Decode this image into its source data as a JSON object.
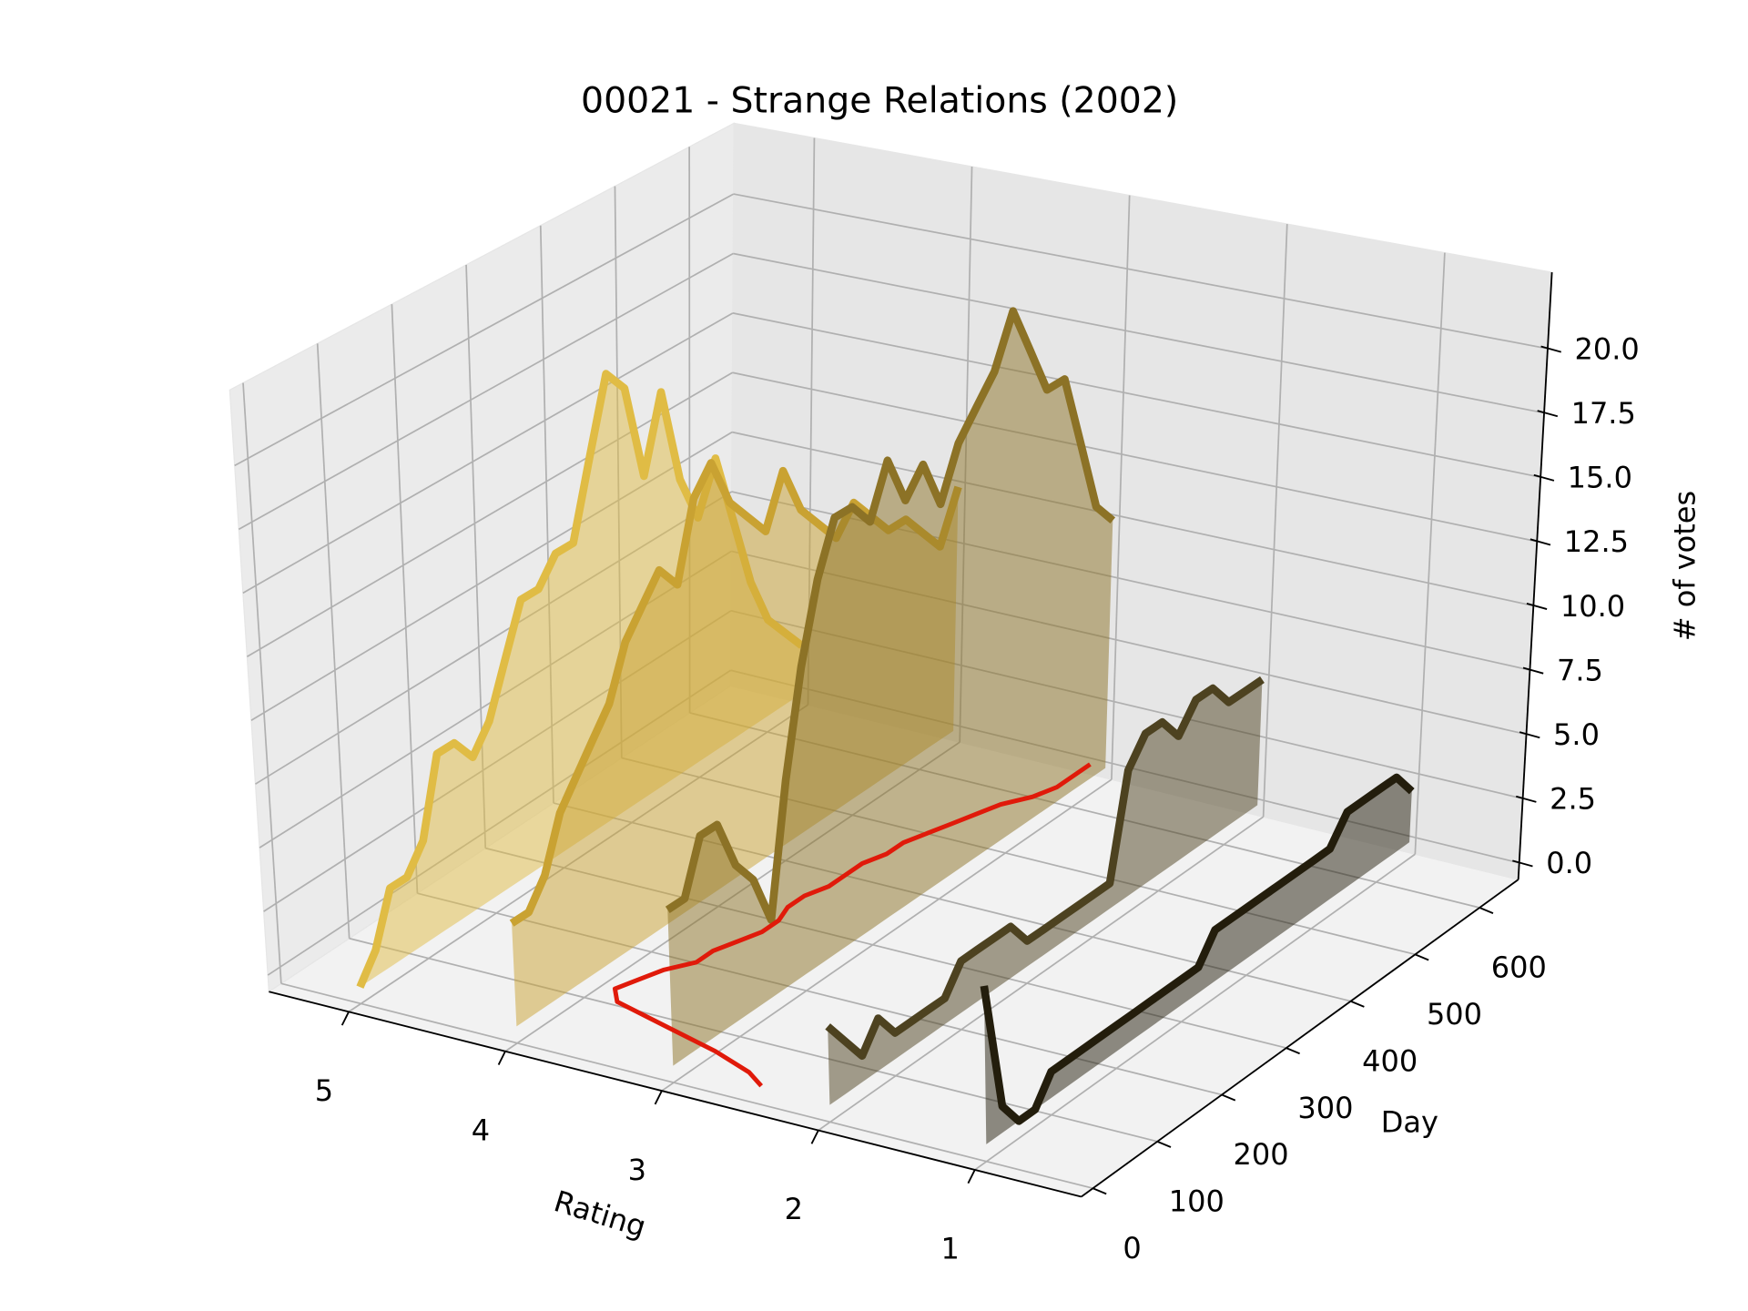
{
  "chart_data": {
    "type": "line3d",
    "title": "00021 - Strange Relations (2002)",
    "xlabel": "Rating",
    "ylabel": "Day",
    "zlabel": "# of votes",
    "xlim": [
      5.51,
      0.32
    ],
    "xticks": [
      1,
      2,
      3,
      4,
      5
    ],
    "ylim": [
      -18,
      660
    ],
    "yticks": [
      0,
      100,
      200,
      300,
      400,
      500,
      600
    ],
    "zlim": [
      -0.65,
      22.97
    ],
    "zticks": [
      {
        "value": 0,
        "label": "0.0"
      },
      2.5,
      {
        "value": 5,
        "label": "5.0"
      },
      7.5,
      {
        "value": 10,
        "label": "10.0"
      },
      12.5,
      {
        "value": 15,
        "label": "15.0"
      },
      17.5,
      {
        "value": 20,
        "label": "20.0"
      }
    ],
    "grid": true,
    "days": [
      0,
      25,
      50,
      75,
      100,
      125,
      150,
      175,
      200,
      225,
      250,
      275,
      300,
      325,
      350,
      375,
      400,
      425,
      450,
      475,
      500,
      525,
      550,
      575,
      600,
      625,
      650
    ],
    "series": [
      {
        "x": 5,
        "color": "#e0bc45",
        "values": [
          0,
          1,
          3,
          3,
          4,
          7,
          7,
          6,
          7,
          9,
          11,
          11,
          12,
          12,
          15,
          18,
          17,
          13,
          16,
          12,
          10,
          12,
          9,
          6,
          4,
          3,
          2
        ]
      },
      {
        "x": 4,
        "color": "#c9a232",
        "values": [
          4,
          4,
          5,
          7,
          8,
          9,
          10,
          12,
          13,
          14,
          13,
          16,
          17,
          15,
          14,
          13,
          15,
          13,
          12,
          11,
          12,
          11,
          10,
          10,
          9,
          8,
          10
        ]
      },
      {
        "x": 3,
        "color": "#8c7226",
        "values": [
          6,
          6,
          8,
          8,
          6,
          5,
          3,
          8,
          12,
          15,
          17,
          17,
          16,
          18,
          16,
          17,
          15,
          17,
          18,
          19,
          21,
          19,
          17,
          17,
          14,
          11,
          10
        ]
      },
      {
        "x": 2,
        "color": "#4d4220",
        "values": [
          3,
          2,
          1,
          2,
          1,
          1,
          1,
          1,
          2,
          2,
          2,
          2,
          1,
          1,
          1,
          1,
          1,
          1,
          5,
          6,
          6,
          5,
          6,
          6,
          5,
          5,
          5
        ]
      },
      {
        "x": 1,
        "color": "#231d0c",
        "values": [
          6,
          1,
          0,
          0,
          1,
          1,
          1,
          1,
          1,
          1,
          1,
          1,
          1,
          1,
          2,
          2,
          2,
          2,
          2,
          2,
          2,
          2,
          3,
          3,
          3,
          3,
          2
        ]
      }
    ],
    "trace": {
      "color": "#e01a0a",
      "x": [
        2.45,
        2.6,
        2.9,
        3.3,
        3.7,
        3.8,
        3.75,
        3.7,
        3.6,
        3.6,
        3.55,
        3.5,
        3.5,
        3.55,
        3.55,
        3.5,
        3.5,
        3.5,
        3.45,
        3.45,
        3.4,
        3.35,
        3.3,
        3.25,
        3.15,
        3.1,
        3.1
      ],
      "y": [
        3,
        20,
        40,
        60,
        80,
        100,
        125,
        150,
        175,
        200,
        225,
        250,
        275,
        300,
        325,
        350,
        375,
        400,
        425,
        450,
        475,
        500,
        525,
        550,
        575,
        600,
        650
      ]
    }
  }
}
